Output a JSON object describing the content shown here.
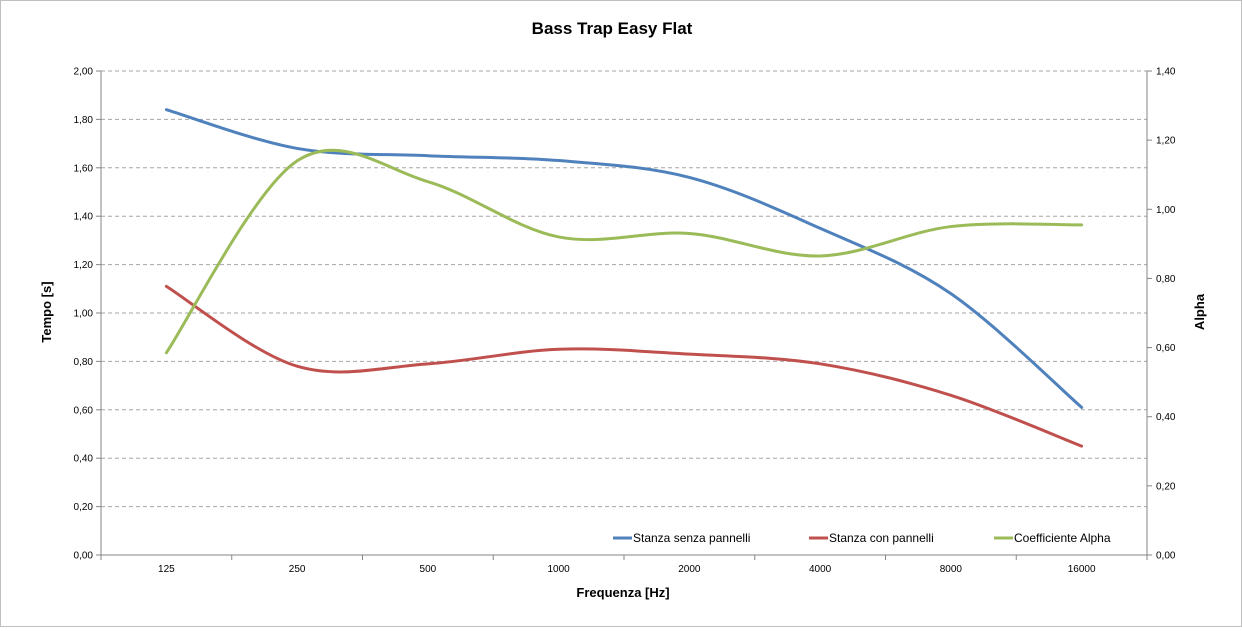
{
  "chart_data": {
    "type": "line",
    "title": "Bass Trap Easy Flat",
    "xlabel": "Frequenza [Hz]",
    "ylabel": "Tempo [s]",
    "y2label": "Alpha",
    "categories": [
      "125",
      "250",
      "500",
      "1000",
      "2000",
      "4000",
      "8000",
      "16000"
    ],
    "ylim": [
      0,
      2
    ],
    "y2lim": [
      0,
      1.4
    ],
    "yticks": [
      "0,00",
      "0,20",
      "0,40",
      "0,60",
      "0,80",
      "1,00",
      "1,20",
      "1,40",
      "1,60",
      "1,80",
      "2,00"
    ],
    "y2ticks": [
      "0,00",
      "0,20",
      "0,40",
      "0,60",
      "0,80",
      "1,00",
      "1,20",
      "1,40"
    ],
    "grid": true,
    "legend_position": "bottom-right",
    "series": [
      {
        "name": "Stanza senza pannelli",
        "axis": "left",
        "color": "#4f81bd",
        "values": [
          1.84,
          1.68,
          1.65,
          1.63,
          1.56,
          1.35,
          1.08,
          0.61
        ]
      },
      {
        "name": "Stanza con pannelli",
        "axis": "left",
        "color": "#c0504d",
        "values": [
          1.11,
          0.78,
          0.79,
          0.85,
          0.83,
          0.79,
          0.66,
          0.45
        ]
      },
      {
        "name": "Coefficiente Alpha",
        "axis": "right",
        "color": "#9bbb59",
        "values": [
          0.585,
          1.14,
          1.08,
          0.92,
          0.93,
          0.865,
          0.95,
          0.955
        ]
      }
    ]
  }
}
